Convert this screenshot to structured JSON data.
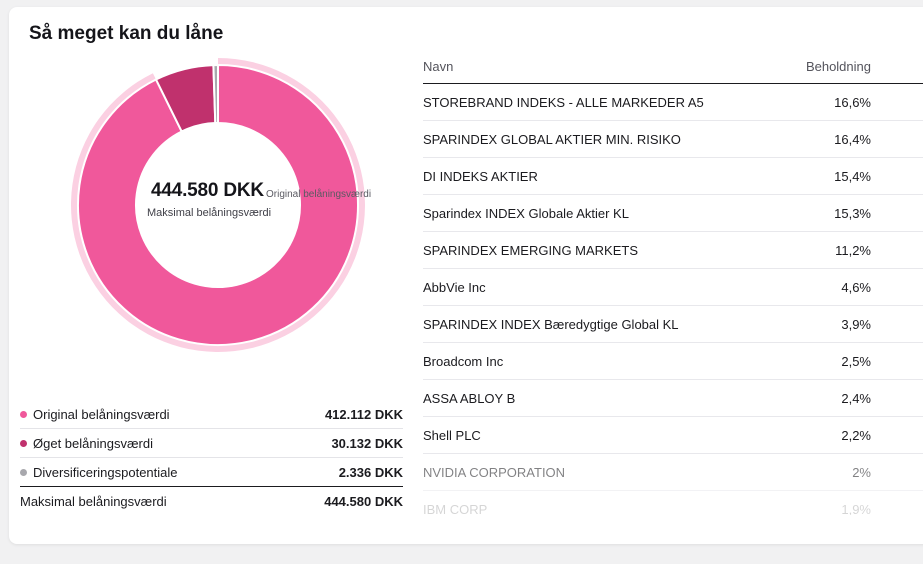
{
  "title": "Så meget kan du låne",
  "center": {
    "value": "444.580 DKK",
    "label": "Maksimal belåningsværdi",
    "hover_label": "Original belåningsværdi"
  },
  "colors": {
    "original": "#f0589b",
    "oget": "#c0316d",
    "diversificering": "#a8a8ad",
    "highlight_ring": "#fbd0e2"
  },
  "chart_data": {
    "type": "pie",
    "categories": [
      "Original belåningsværdi",
      "Øget belåningsværdi",
      "Diversificeringspotentiale"
    ],
    "values": [
      412112,
      30132,
      2336
    ]
  },
  "legend": {
    "items": [
      {
        "label": "Original belåningsværdi",
        "value": "412.112 DKK",
        "color": "#f0589b"
      },
      {
        "label": "Øget belåningsværdi",
        "value": "30.132 DKK",
        "color": "#c0316d"
      },
      {
        "label": "Diversificeringspotentiale",
        "value": "2.336 DKK",
        "color": "#a8a8ad"
      }
    ],
    "total": {
      "label": "Maksimal belåningsværdi",
      "value": "444.580 DKK"
    }
  },
  "table": {
    "headers": {
      "name": "Navn",
      "holding": "Beholdning"
    },
    "rows": [
      {
        "name": "STOREBRAND INDEKS - ALLE MARKEDER A5",
        "holding": "16,6%"
      },
      {
        "name": "SPARINDEX GLOBAL AKTIER MIN. RISIKO",
        "holding": "16,4%"
      },
      {
        "name": "DI INDEKS AKTIER",
        "holding": "15,4%"
      },
      {
        "name": "Sparindex INDEX Globale Aktier KL",
        "holding": "15,3%"
      },
      {
        "name": "SPARINDEX EMERGING MARKETS",
        "holding": "11,2%"
      },
      {
        "name": "AbbVie Inc",
        "holding": "4,6%"
      },
      {
        "name": "SPARINDEX INDEX Bæredygtige Global KL",
        "holding": "3,9%"
      },
      {
        "name": "Broadcom Inc",
        "holding": "2,5%"
      },
      {
        "name": "ASSA ABLOY B",
        "holding": "2,4%"
      },
      {
        "name": "Shell PLC",
        "holding": "2,2%"
      },
      {
        "name": "NVIDIA CORPORATION",
        "holding": "2%"
      },
      {
        "name": "IBM CORP",
        "holding": "1,9%"
      }
    ]
  }
}
